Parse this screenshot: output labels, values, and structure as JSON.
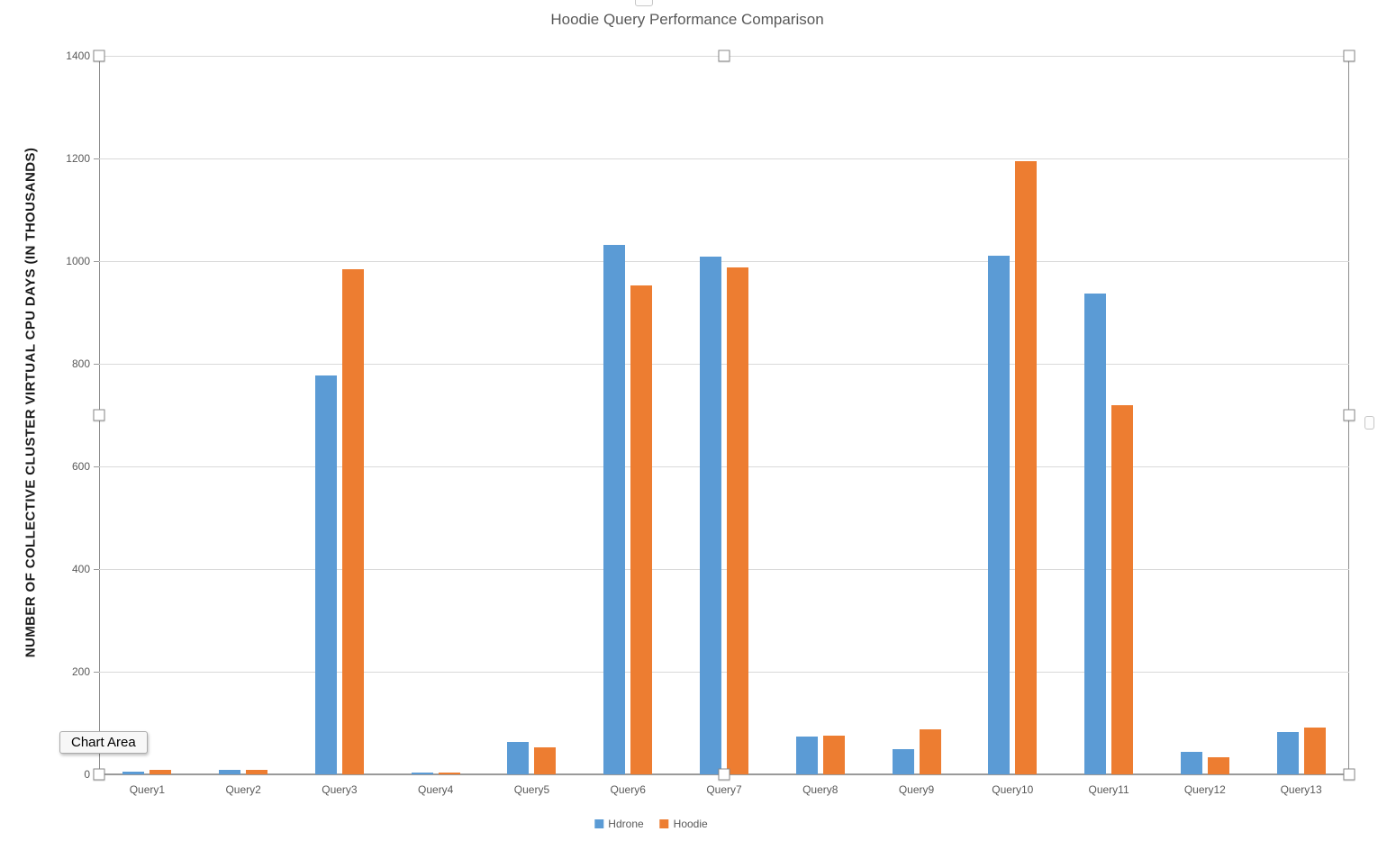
{
  "chart_data": {
    "type": "bar",
    "title": "Hoodie Query Performance Comparison",
    "xlabel": "",
    "ylabel": "NUMBER OF COLLECTIVE CLUSTER VIRTUAL CPU DAYS (IN THOUSANDS)",
    "categories": [
      "Query1",
      "Query2",
      "Query3",
      "Query4",
      "Query5",
      "Query6",
      "Query7",
      "Query8",
      "Query9",
      "Query10",
      "Query11",
      "Query12",
      "Query13"
    ],
    "series": [
      {
        "name": "Hdrone",
        "color": "#5B9BD5",
        "values": [
          5,
          8,
          778,
          4,
          64,
          1032,
          1008,
          74,
          50,
          1010,
          936,
          43,
          82
        ]
      },
      {
        "name": "Hoodie",
        "color": "#ED7D31",
        "values": [
          9,
          8,
          985,
          4,
          52,
          952,
          987,
          75,
          88,
          1195,
          720,
          34,
          91
        ]
      }
    ],
    "ylim": [
      0,
      1400
    ],
    "ytick_interval": 200,
    "grid": true,
    "legend_position": "bottom"
  },
  "selection": {
    "tooltip_label": "Chart Area"
  },
  "colors": {
    "series_blue": "#5B9BD5",
    "series_orange": "#ED7D31",
    "gridline": "#D9D9D9",
    "axis_text": "#595959",
    "plot_border": "#8C8C8C"
  }
}
